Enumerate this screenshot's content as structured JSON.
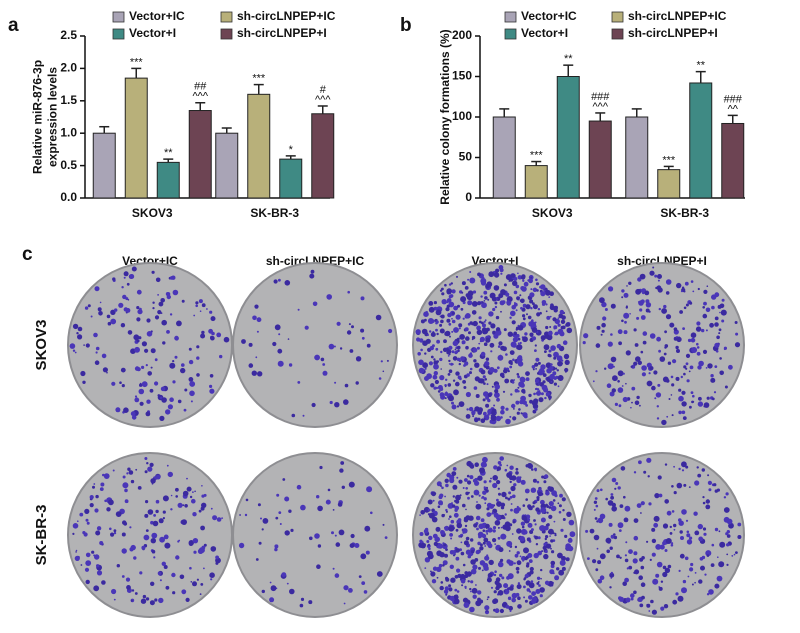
{
  "chart_data": [
    {
      "type": "bar",
      "panel_label": "a",
      "ylabel": [
        "Relative miR-876-3p",
        "expression levels"
      ],
      "categories": [
        "SKOV3",
        "SK-BR-3"
      ],
      "series": [
        {
          "name": "Vector+IC",
          "color": "#a9a4b6",
          "values": [
            1.0,
            1.0
          ],
          "errors": [
            0.1,
            0.08
          ],
          "annotations": [
            [],
            []
          ]
        },
        {
          "name": "sh-circLNPEP+IC",
          "color": "#b8b07a",
          "values": [
            1.85,
            1.6
          ],
          "errors": [
            0.15,
            0.15
          ],
          "annotations": [
            [
              "***"
            ],
            [
              "***"
            ]
          ]
        },
        {
          "name": "Vector+I",
          "color": "#3f8a84",
          "values": [
            0.55,
            0.6
          ],
          "errors": [
            0.05,
            0.05
          ],
          "annotations": [
            [
              "**"
            ],
            [
              "*"
            ]
          ]
        },
        {
          "name": "sh-circLNPEP+I",
          "color": "#6d4453",
          "values": [
            1.35,
            1.3
          ],
          "errors": [
            0.12,
            0.12
          ],
          "annotations": [
            [
              "##",
              "^^^"
            ],
            [
              "#",
              "^^^"
            ]
          ]
        }
      ],
      "ylim": [
        0,
        2.5
      ],
      "yticks": [
        {
          "value": 0,
          "label": "0.0"
        },
        {
          "value": 0.5,
          "label": "0.5"
        },
        {
          "value": 1,
          "label": "1.0"
        },
        {
          "value": 1.5,
          "label": "1.5"
        },
        {
          "value": 2,
          "label": "2.0"
        },
        {
          "value": 2.5,
          "label": "2.5"
        }
      ]
    },
    {
      "type": "bar",
      "panel_label": "b",
      "ylabel": [
        "Relative colony formations (%)"
      ],
      "categories": [
        "SKOV3",
        "SK-BR-3"
      ],
      "series": [
        {
          "name": "Vector+IC",
          "color": "#a9a4b6",
          "values": [
            100,
            100
          ],
          "errors": [
            10,
            10
          ],
          "annotations": [
            [],
            []
          ]
        },
        {
          "name": "sh-circLNPEP+IC",
          "color": "#b8b07a",
          "values": [
            40,
            35
          ],
          "errors": [
            5,
            4
          ],
          "annotations": [
            [
              "***"
            ],
            [
              "***"
            ]
          ]
        },
        {
          "name": "Vector+I",
          "color": "#3f8a84",
          "values": [
            150,
            142
          ],
          "errors": [
            14,
            14
          ],
          "annotations": [
            [
              "**"
            ],
            [
              "**"
            ]
          ]
        },
        {
          "name": "sh-circLNPEP+I",
          "color": "#6d4453",
          "values": [
            95,
            92
          ],
          "errors": [
            10,
            10
          ],
          "annotations": [
            [
              "###",
              "^^^"
            ],
            [
              "###",
              "^^"
            ]
          ]
        }
      ],
      "ylim": [
        0,
        200
      ],
      "yticks": [
        0,
        50,
        100,
        150,
        200
      ]
    }
  ],
  "panel_c": {
    "panel_label": "c",
    "columns": [
      "Vector+IC",
      "sh-circLNPEP+IC",
      "Vector+I",
      "sh-circLNPEP+I"
    ],
    "rows": [
      "SKOV3",
      "SK-BR-3"
    ]
  }
}
